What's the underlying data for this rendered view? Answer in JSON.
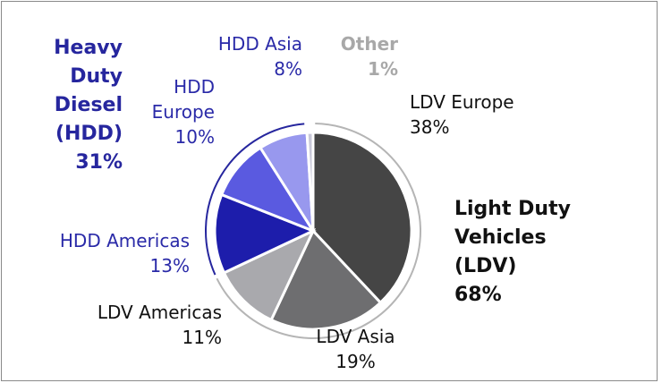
{
  "chart_data": {
    "type": "pie",
    "categories": [
      "LDV Europe",
      "LDV Asia",
      "LDV Americas",
      "HDD Americas",
      "HDD Europe",
      "HDD Asia",
      "Other"
    ],
    "values": [
      38,
      19,
      11,
      13,
      10,
      8,
      1
    ],
    "value_labels": [
      "38%",
      "19%",
      "11%",
      "13%",
      "10%",
      "8%",
      "1%"
    ],
    "colors": [
      "#454545",
      "#6e6e70",
      "#a9a9ad",
      "#1d1dab",
      "#5a5ae0",
      "#9898ee",
      "#c8c8d8"
    ],
    "groups": [
      {
        "name": "Light Duty Vehicles (LDV)",
        "value": 68,
        "value_label": "68%",
        "color": "#111111",
        "arc_color": "#b5b5b5"
      },
      {
        "name": "Heavy Duty Diesel (HDD)",
        "value": 31,
        "value_label": "31%",
        "color": "#26269e",
        "arc_color": "#26269e"
      }
    ]
  }
}
